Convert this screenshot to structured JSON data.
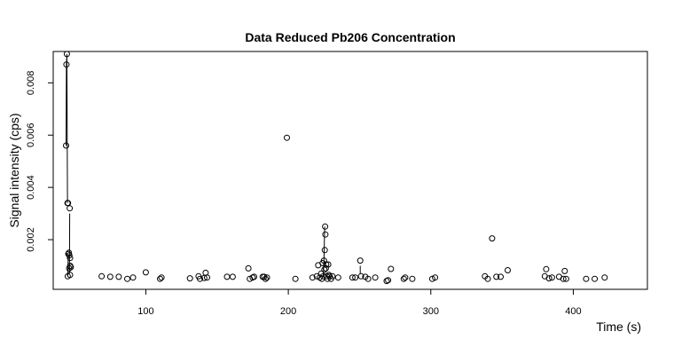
{
  "chart_data": {
    "type": "scatter",
    "title": "Data Reduced Pb206 Concentration",
    "xlabel": "Time (s)",
    "ylabel": "Signal intensity (cps)",
    "xlim": [
      35,
      452
    ],
    "ylim": [
      0.0001,
      0.0092
    ],
    "x_ticks": [
      100,
      200,
      300,
      400
    ],
    "y_ticks": [
      0.002,
      0.004,
      0.006,
      0.008
    ],
    "x_tick_labels": [
      "100",
      "200",
      "300",
      "400"
    ],
    "y_tick_labels": [
      "0.002",
      "0.004",
      "0.006",
      "0.008"
    ],
    "grid": false,
    "legend": "none",
    "marker": "open-circle",
    "point_color": "#000000",
    "segments": [
      {
        "x": [
          44.0,
          44.3,
          44.6,
          45.0
        ],
        "y": [
          0.0056,
          0.0087,
          0.0091,
          0.0034
        ]
      },
      {
        "x": [
          45.2,
          45.6
        ],
        "y": [
          0.0006,
          0.00145
        ]
      },
      {
        "x": [
          46.4,
          46.6
        ],
        "y": [
          0.0007,
          0.003
        ]
      },
      {
        "x": [
          224.5,
          225.0,
          225.5
        ],
        "y": [
          0.0006,
          0.0012,
          0.0025
        ]
      },
      {
        "x": [
          250.5,
          250.5
        ],
        "y": [
          0.0007,
          0.001
        ]
      }
    ],
    "points": [
      {
        "x": 44.3,
        "y": 0.0087
      },
      {
        "x": 44.6,
        "y": 0.0091
      },
      {
        "x": 44.0,
        "y": 0.0056
      },
      {
        "x": 45.0,
        "y": 0.0034
      },
      {
        "x": 45.4,
        "y": 0.0034
      },
      {
        "x": 45.6,
        "y": 0.00145
      },
      {
        "x": 46.0,
        "y": 0.0015
      },
      {
        "x": 46.3,
        "y": 0.0014
      },
      {
        "x": 46.6,
        "y": 0.0032
      },
      {
        "x": 46.8,
        "y": 0.0013
      },
      {
        "x": 46.2,
        "y": 0.0009
      },
      {
        "x": 46.9,
        "y": 0.001
      },
      {
        "x": 47.4,
        "y": 0.00095
      },
      {
        "x": 45.2,
        "y": 0.0006
      },
      {
        "x": 46.8,
        "y": 0.00065
      },
      {
        "x": 69,
        "y": 0.0006
      },
      {
        "x": 75,
        "y": 0.00058
      },
      {
        "x": 81,
        "y": 0.00058
      },
      {
        "x": 87,
        "y": 0.0005
      },
      {
        "x": 91,
        "y": 0.00055
      },
      {
        "x": 100,
        "y": 0.00075
      },
      {
        "x": 110,
        "y": 0.0005
      },
      {
        "x": 111,
        "y": 0.00055
      },
      {
        "x": 131,
        "y": 0.00052
      },
      {
        "x": 137,
        "y": 0.0006
      },
      {
        "x": 138,
        "y": 0.0005
      },
      {
        "x": 141,
        "y": 0.00053
      },
      {
        "x": 142,
        "y": 0.00073
      },
      {
        "x": 143,
        "y": 0.00055
      },
      {
        "x": 157,
        "y": 0.00058
      },
      {
        "x": 161,
        "y": 0.00058
      },
      {
        "x": 172,
        "y": 0.0009
      },
      {
        "x": 173,
        "y": 0.0005
      },
      {
        "x": 175,
        "y": 0.00055
      },
      {
        "x": 176,
        "y": 0.00058
      },
      {
        "x": 182,
        "y": 0.00058
      },
      {
        "x": 183,
        "y": 0.00058
      },
      {
        "x": 184,
        "y": 0.0005
      },
      {
        "x": 185,
        "y": 0.00055
      },
      {
        "x": 199,
        "y": 0.0059
      },
      {
        "x": 205,
        "y": 0.0005
      },
      {
        "x": 217,
        "y": 0.00055
      },
      {
        "x": 220,
        "y": 0.0006
      },
      {
        "x": 221,
        "y": 0.00102
      },
      {
        "x": 222,
        "y": 0.00055
      },
      {
        "x": 223,
        "y": 0.0007
      },
      {
        "x": 223.5,
        "y": 0.0005
      },
      {
        "x": 224,
        "y": 0.0011
      },
      {
        "x": 224.5,
        "y": 0.0006
      },
      {
        "x": 225,
        "y": 0.0012
      },
      {
        "x": 225.3,
        "y": 0.00085
      },
      {
        "x": 225.6,
        "y": 0.0016
      },
      {
        "x": 225.8,
        "y": 0.0025
      },
      {
        "x": 226,
        "y": 0.0022
      },
      {
        "x": 226.3,
        "y": 0.0009
      },
      {
        "x": 226.6,
        "y": 0.00105
      },
      {
        "x": 227,
        "y": 0.0006
      },
      {
        "x": 227.5,
        "y": 0.0005
      },
      {
        "x": 228,
        "y": 0.00105
      },
      {
        "x": 228.5,
        "y": 0.00065
      },
      {
        "x": 229,
        "y": 0.0006
      },
      {
        "x": 230,
        "y": 0.0005
      },
      {
        "x": 231,
        "y": 0.0006
      },
      {
        "x": 235,
        "y": 0.00055
      },
      {
        "x": 245,
        "y": 0.00055
      },
      {
        "x": 247,
        "y": 0.00055
      },
      {
        "x": 250.5,
        "y": 0.0012
      },
      {
        "x": 251,
        "y": 0.0006
      },
      {
        "x": 254,
        "y": 0.00058
      },
      {
        "x": 256,
        "y": 0.0005
      },
      {
        "x": 261,
        "y": 0.00055
      },
      {
        "x": 269,
        "y": 0.00042
      },
      {
        "x": 270,
        "y": 0.00045
      },
      {
        "x": 272,
        "y": 0.00088
      },
      {
        "x": 281,
        "y": 0.0005
      },
      {
        "x": 282,
        "y": 0.00055
      },
      {
        "x": 287,
        "y": 0.0005
      },
      {
        "x": 301,
        "y": 0.0005
      },
      {
        "x": 303,
        "y": 0.00055
      },
      {
        "x": 338,
        "y": 0.0006
      },
      {
        "x": 340,
        "y": 0.0005
      },
      {
        "x": 343,
        "y": 0.00205
      },
      {
        "x": 346,
        "y": 0.00058
      },
      {
        "x": 349,
        "y": 0.00058
      },
      {
        "x": 354,
        "y": 0.00083
      },
      {
        "x": 380,
        "y": 0.0006
      },
      {
        "x": 381,
        "y": 0.00087
      },
      {
        "x": 383,
        "y": 0.00052
      },
      {
        "x": 385,
        "y": 0.00055
      },
      {
        "x": 390,
        "y": 0.00058
      },
      {
        "x": 393,
        "y": 0.0005
      },
      {
        "x": 394,
        "y": 0.0008
      },
      {
        "x": 395,
        "y": 0.0005
      },
      {
        "x": 409,
        "y": 0.0005
      },
      {
        "x": 415,
        "y": 0.0005
      },
      {
        "x": 422,
        "y": 0.00055
      }
    ]
  }
}
